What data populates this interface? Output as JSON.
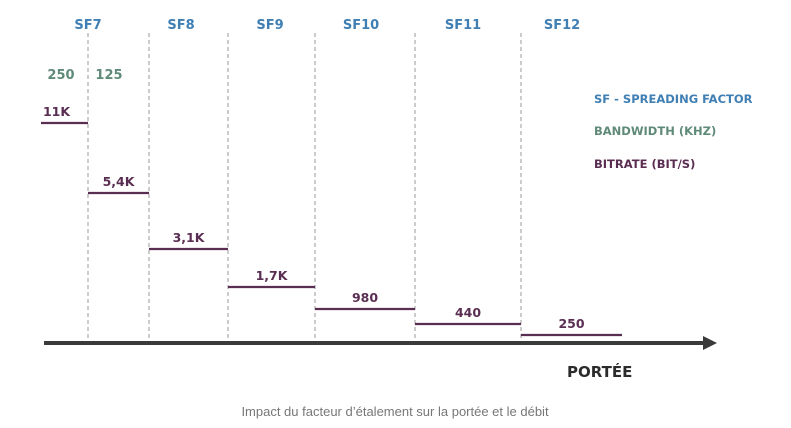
{
  "chart_data": {
    "type": "line",
    "description_axis": "PORTÉE",
    "categories": [
      "SF7",
      "SF8",
      "SF9",
      "SF10",
      "SF11",
      "SF12"
    ],
    "bandwidths": [
      "250",
      "125"
    ],
    "bitrate_labels": [
      "11K",
      "5,4K",
      "3,1K",
      "1,7K",
      "980",
      "440",
      "250"
    ],
    "bitrate_values": [
      11000,
      5400,
      3100,
      1700,
      980,
      440,
      250
    ],
    "legend": {
      "sf": "SF - SPREADING FACTOR",
      "bandwidth": "BANDWIDTH (KHZ)",
      "bitrate": "BITRATE (BIT/S)"
    },
    "colors": {
      "sf": "#3f7fb3",
      "bandwidth": "#5f8a78",
      "bitrate": "#5a2e52",
      "axis": "#3a3a3a",
      "divider": "#9a9a9a"
    }
  },
  "caption": "Impact du facteur d’étalement sur la portée et le débit"
}
